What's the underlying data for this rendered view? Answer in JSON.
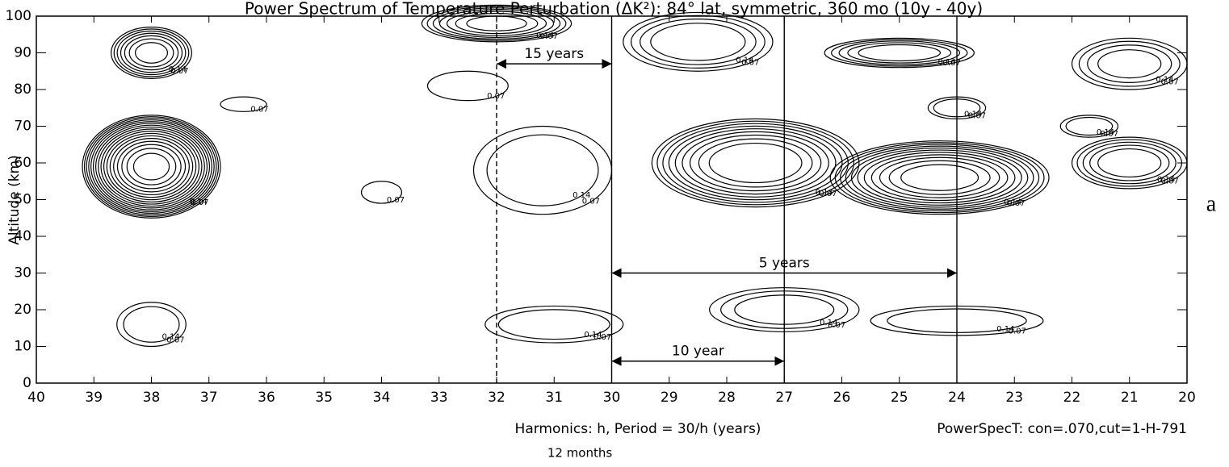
{
  "chart_data": {
    "type": "contour",
    "title": "Power Spectrum of Temperature Perturbation (ΔK²): 84° lat, symmetric, 360 mo (10y - 40y)",
    "x_label": "Harmonics: h, Period = 30/h (years)",
    "y_label": "Altitude (km)",
    "note": "PowerSpecT: con=.070,cut=1-H-791",
    "sub_note": "12 months",
    "panel_label": "a",
    "xlim": [
      40,
      20
    ],
    "ylim": [
      0,
      100
    ],
    "xticks": [
      40,
      39,
      38,
      37,
      36,
      35,
      34,
      33,
      32,
      31,
      30,
      29,
      28,
      27,
      26,
      25,
      24,
      23,
      22,
      21,
      20
    ],
    "yticks": [
      0,
      10,
      20,
      30,
      40,
      50,
      60,
      70,
      80,
      90,
      100
    ],
    "levels": [
      0.07,
      0.14,
      0.21,
      0.28,
      0.35
    ],
    "contours": [
      {
        "x": 38,
        "y": 59,
        "rx": 1.2,
        "ry": 14,
        "peak": 1.2
      },
      {
        "x": 38,
        "y": 90,
        "rx": 0.7,
        "ry": 7,
        "peak": 0.5
      },
      {
        "x": 38,
        "y": 16,
        "rx": 0.6,
        "ry": 6,
        "peak": 0.2
      },
      {
        "x": 32,
        "y": 98,
        "rx": 1.3,
        "ry": 5,
        "peak": 0.5
      },
      {
        "x": 31.2,
        "y": 58,
        "rx": 1.2,
        "ry": 12,
        "peak": 0.2
      },
      {
        "x": 27.5,
        "y": 60,
        "rx": 1.8,
        "ry": 12,
        "peak": 0.7
      },
      {
        "x": 24.3,
        "y": 56,
        "rx": 1.9,
        "ry": 10,
        "peak": 0.8
      },
      {
        "x": 21,
        "y": 60,
        "rx": 1.0,
        "ry": 7,
        "peak": 0.4
      },
      {
        "x": 25,
        "y": 90,
        "rx": 1.3,
        "ry": 4,
        "peak": 0.4
      },
      {
        "x": 27,
        "y": 20,
        "rx": 1.3,
        "ry": 6,
        "peak": 0.25
      },
      {
        "x": 31,
        "y": 16,
        "rx": 1.2,
        "ry": 5,
        "peak": 0.2
      },
      {
        "x": 24,
        "y": 17,
        "rx": 1.5,
        "ry": 4,
        "peak": 0.2
      },
      {
        "x": 28.5,
        "y": 93,
        "rx": 1.3,
        "ry": 8,
        "peak": 0.35
      },
      {
        "x": 21,
        "y": 87,
        "rx": 1.0,
        "ry": 7,
        "peak": 0.3
      },
      {
        "x": 36.4,
        "y": 76,
        "rx": 0.4,
        "ry": 2,
        "peak": 0.08
      },
      {
        "x": 34,
        "y": 52,
        "rx": 0.35,
        "ry": 3,
        "peak": 0.08
      },
      {
        "x": 32.5,
        "y": 81,
        "rx": 0.7,
        "ry": 4,
        "peak": 0.1
      },
      {
        "x": 24,
        "y": 75,
        "rx": 0.5,
        "ry": 3,
        "peak": 0.2
      },
      {
        "x": 21.7,
        "y": 70,
        "rx": 0.5,
        "ry": 3,
        "peak": 0.2
      }
    ],
    "vlines": [
      {
        "x": 32,
        "dashed": true
      },
      {
        "x": 30,
        "dashed": false
      },
      {
        "x": 27,
        "dashed": false
      },
      {
        "x": 24,
        "dashed": false
      }
    ],
    "spans": [
      {
        "x1": 32,
        "x2": 30,
        "y": 87,
        "label": "15 years"
      },
      {
        "x1": 30,
        "x2": 24,
        "y": 30,
        "label": "5 years"
      },
      {
        "x1": 30,
        "x2": 27,
        "y": 6,
        "label": "10 year"
      }
    ]
  }
}
